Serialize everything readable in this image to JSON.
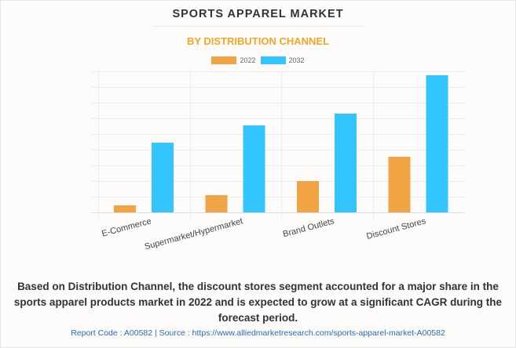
{
  "chart_data": {
    "type": "bar",
    "title": "SPORTS APPAREL MARKET",
    "subtitle": "BY DISTRIBUTION CHANNEL",
    "categories": [
      "E-Commerce",
      "Supermarket/Hypermarket",
      "Brand Outlets",
      "Discount Stores"
    ],
    "series": [
      {
        "name": "2022",
        "color": "#f0a444",
        "values": [
          0.45,
          1.1,
          2.0,
          3.55
        ]
      },
      {
        "name": "2032",
        "color": "#33c5ff",
        "values": [
          4.45,
          5.55,
          6.3,
          8.75
        ]
      }
    ],
    "xlabel": "",
    "ylabel": "",
    "ylim": [
      0,
      9
    ],
    "y_ticks_shown": false,
    "grid": true,
    "legend": "top-center"
  },
  "caption": "Based on Distribution Channel, the discount stores segment accounted for a major share in the sports apparel products market in 2022 and is expected to grow at a significant CAGR during the forecast period.",
  "footer": "Report Code : A00582  |  Source : https://www.alliedmarketresearch.com/sports-apparel-market-A00582"
}
